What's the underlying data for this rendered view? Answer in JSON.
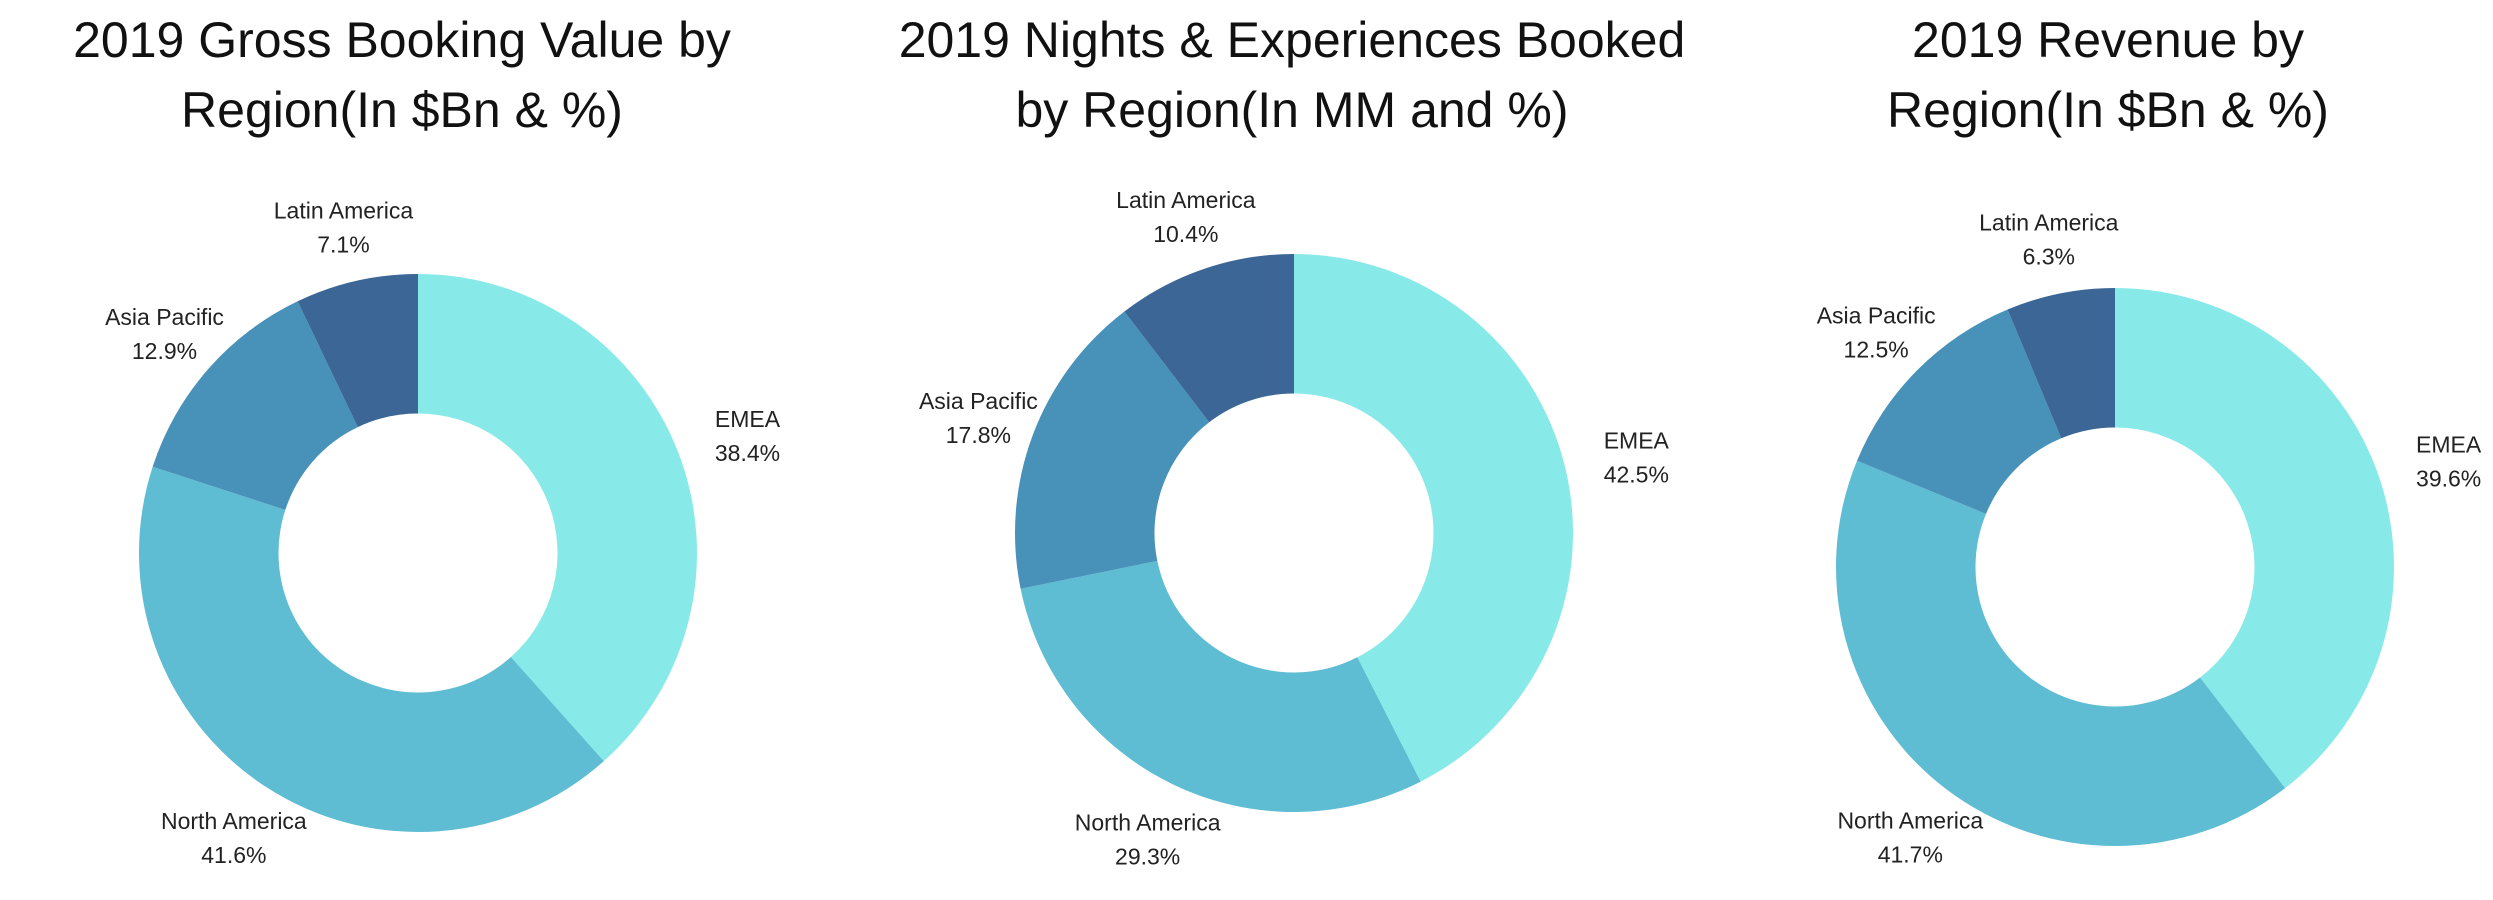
{
  "colors": {
    "EMEA": "#88EAE8",
    "North America": "#5EBCD3",
    "Asia Pacific": "#4891B9",
    "Latin America": "#3B6696"
  },
  "chart_data": [
    {
      "type": "pie",
      "title_lines": [
        "2019 Gross Booking Value by",
        "Region(In $Bn & %)"
      ],
      "hole": 0.5,
      "categories": [
        "EMEA",
        "North America",
        "Asia Pacific",
        "Latin America"
      ],
      "values": [
        38.4,
        41.6,
        12.9,
        7.1
      ],
      "labels": [
        "38.4%",
        "41.6%",
        "12.9%",
        "7.1%"
      ]
    },
    {
      "type": "pie",
      "title_lines": [
        "2019 Nights & Experiences Booked",
        "by Region(In MM and %)"
      ],
      "hole": 0.5,
      "categories": [
        "EMEA",
        "North America",
        "Asia Pacific",
        "Latin America"
      ],
      "values": [
        42.5,
        29.3,
        17.8,
        10.4
      ],
      "labels": [
        "42.5%",
        "29.3%",
        "17.8%",
        "10.4%"
      ]
    },
    {
      "type": "pie",
      "title_lines": [
        "2019 Revenue by",
        "Region(In $Bn & %)"
      ],
      "hole": 0.5,
      "categories": [
        "EMEA",
        "North America",
        "Asia Pacific",
        "Latin America"
      ],
      "values": [
        39.6,
        41.7,
        12.5,
        6.3
      ],
      "labels": [
        "39.6%",
        "41.7%",
        "12.5%",
        "6.3%"
      ]
    }
  ]
}
